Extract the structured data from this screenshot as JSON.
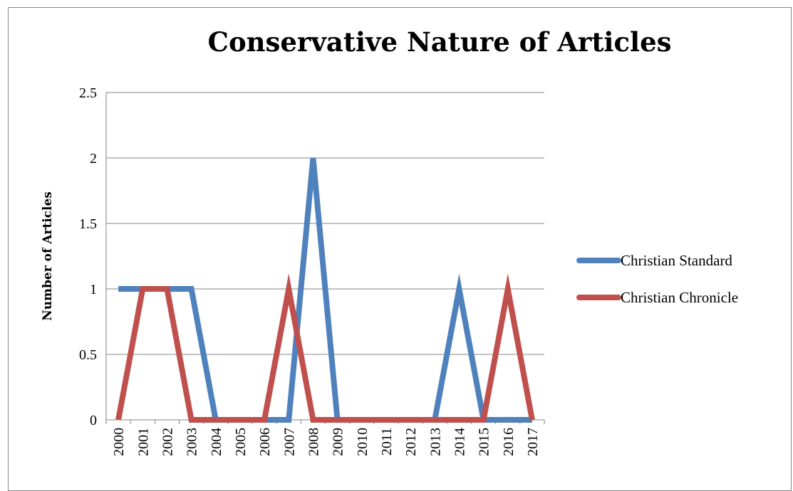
{
  "chart_data": {
    "type": "line",
    "title": "Conservative Nature of Articles",
    "xlabel": "",
    "ylabel": "Number of Articles",
    "categories": [
      "2000",
      "2001",
      "2002",
      "2003",
      "2004",
      "2005",
      "2006",
      "2007",
      "2008",
      "2009",
      "2010",
      "2011",
      "2012",
      "2013",
      "2014",
      "2015",
      "2016",
      "2017"
    ],
    "ylim": [
      0,
      2.5
    ],
    "yticks": [
      "0",
      "0.5",
      "1",
      "1.5",
      "2",
      "2.5"
    ],
    "grid": true,
    "legend_position": "right",
    "series": [
      {
        "name": "Christian Standard",
        "color": "#4F81BD",
        "values": [
          1,
          1,
          1,
          1,
          0,
          0,
          0,
          0,
          2,
          0,
          0,
          0,
          0,
          0,
          1,
          0,
          0,
          0
        ]
      },
      {
        "name": "Christian Chronicle",
        "color": "#C0504D",
        "values": [
          0,
          1,
          1,
          0,
          0,
          0,
          0,
          1,
          0,
          0,
          0,
          0,
          0,
          0,
          0,
          0,
          1,
          0
        ]
      }
    ]
  }
}
